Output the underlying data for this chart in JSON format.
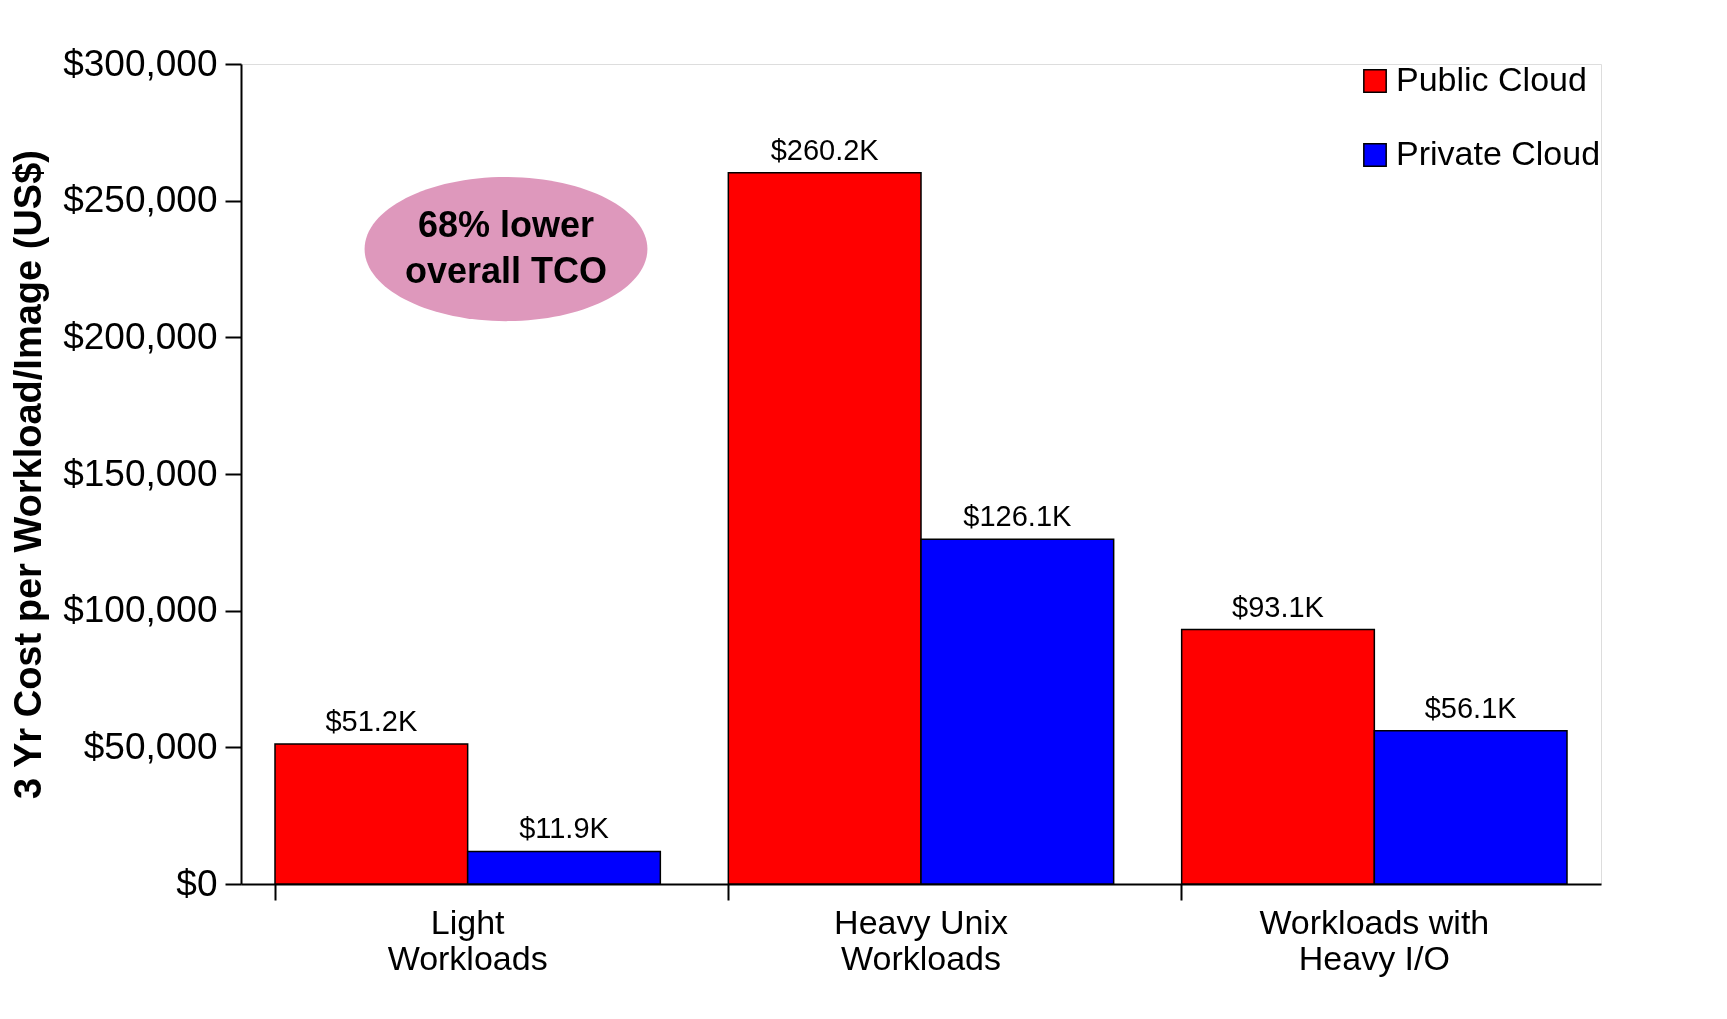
{
  "chart_data": {
    "type": "bar",
    "ylabel": "3 Yr Cost per Workload/Image (US$)",
    "categories": [
      "Light\nWorkloads",
      "Heavy Unix\nWorkloads",
      "Workloads with\nHeavy I/O"
    ],
    "series": [
      {
        "name": "Public Cloud",
        "color": "#ff0000",
        "values": [
          51200,
          260200,
          93100
        ],
        "value_labels": [
          "$51.2K",
          "$260.2K",
          "$93.1K"
        ]
      },
      {
        "name": "Private Cloud",
        "color": "#0000ff",
        "values": [
          11900,
          126100,
          56100
        ],
        "value_labels": [
          "$11.9K",
          "$126.1K",
          "$56.1K"
        ]
      }
    ],
    "ylim": [
      0,
      300000
    ],
    "yticks": [
      {
        "value": 0,
        "label": "$0"
      },
      {
        "value": 50000,
        "label": "$50,000"
      },
      {
        "value": 100000,
        "label": "$100,000"
      },
      {
        "value": 150000,
        "label": "$150,000"
      },
      {
        "value": 200000,
        "label": "$200,000"
      },
      {
        "value": 250000,
        "label": "$250,000"
      },
      {
        "value": 300000,
        "label": "$300,000"
      }
    ],
    "annotations": [
      "68% lower\noverall TCO"
    ],
    "legend": "top right",
    "grid": false
  }
}
